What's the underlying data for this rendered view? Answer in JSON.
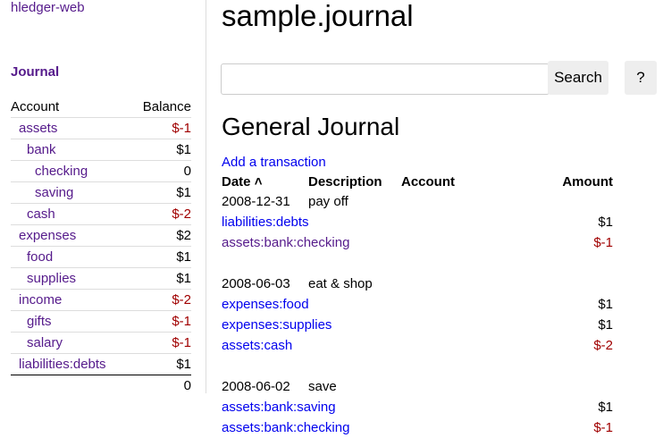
{
  "sidebar": {
    "brand": "hledger-web",
    "journal_link": "Journal",
    "headers": {
      "account": "Account",
      "balance": "Balance"
    },
    "accounts": [
      {
        "name": "assets",
        "balance": "$-1",
        "depth": 1,
        "neg": true
      },
      {
        "name": "bank",
        "balance": "$1",
        "depth": 2,
        "neg": false
      },
      {
        "name": "checking",
        "balance": "0",
        "depth": 3,
        "neg": false
      },
      {
        "name": "saving",
        "balance": "$1",
        "depth": 3,
        "neg": false
      },
      {
        "name": "cash",
        "balance": "$-2",
        "depth": 2,
        "neg": true
      },
      {
        "name": "expenses",
        "balance": "$2",
        "depth": 1,
        "neg": false
      },
      {
        "name": "food",
        "balance": "$1",
        "depth": 2,
        "neg": false
      },
      {
        "name": "supplies",
        "balance": "$1",
        "depth": 2,
        "neg": false
      },
      {
        "name": "income",
        "balance": "$-2",
        "depth": 1,
        "neg": true
      },
      {
        "name": "gifts",
        "balance": "$-1",
        "depth": 2,
        "neg": true
      },
      {
        "name": "salary",
        "balance": "$-1",
        "depth": 2,
        "neg": true
      },
      {
        "name": "liabilities:debts",
        "balance": "$1",
        "depth": 1,
        "neg": false
      }
    ],
    "total": "0"
  },
  "main": {
    "title": "sample.journal",
    "search_value": "",
    "search_label": "Search",
    "help_label": "?",
    "heading": "General Journal",
    "add_link": "Add a transaction",
    "columns": {
      "date": "Date",
      "sort_icon": "chevron-up",
      "description": "Description",
      "account": "Account",
      "amount": "Amount"
    },
    "transactions": [
      {
        "date": "2008-12-31",
        "description": "pay off",
        "postings": [
          {
            "account": "liabilities:debts",
            "amount": "$1",
            "neg": false,
            "visited": false
          },
          {
            "account": "assets:bank:checking",
            "amount": "$-1",
            "neg": true,
            "visited": true
          }
        ]
      },
      {
        "date": "2008-06-03",
        "description": "eat & shop",
        "postings": [
          {
            "account": "expenses:food",
            "amount": "$1",
            "neg": false,
            "visited": false
          },
          {
            "account": "expenses:supplies",
            "amount": "$1",
            "neg": false,
            "visited": false
          },
          {
            "account": "assets:cash",
            "amount": "$-2",
            "neg": true,
            "visited": false
          }
        ]
      },
      {
        "date": "2008-06-02",
        "description": "save",
        "postings": [
          {
            "account": "assets:bank:saving",
            "amount": "$1",
            "neg": false,
            "visited": false
          },
          {
            "account": "assets:bank:checking",
            "amount": "$-1",
            "neg": true,
            "visited": false
          }
        ]
      }
    ]
  },
  "colors": {
    "visited": "#551a8b",
    "link": "#0000ee",
    "negative": "#a00000"
  }
}
